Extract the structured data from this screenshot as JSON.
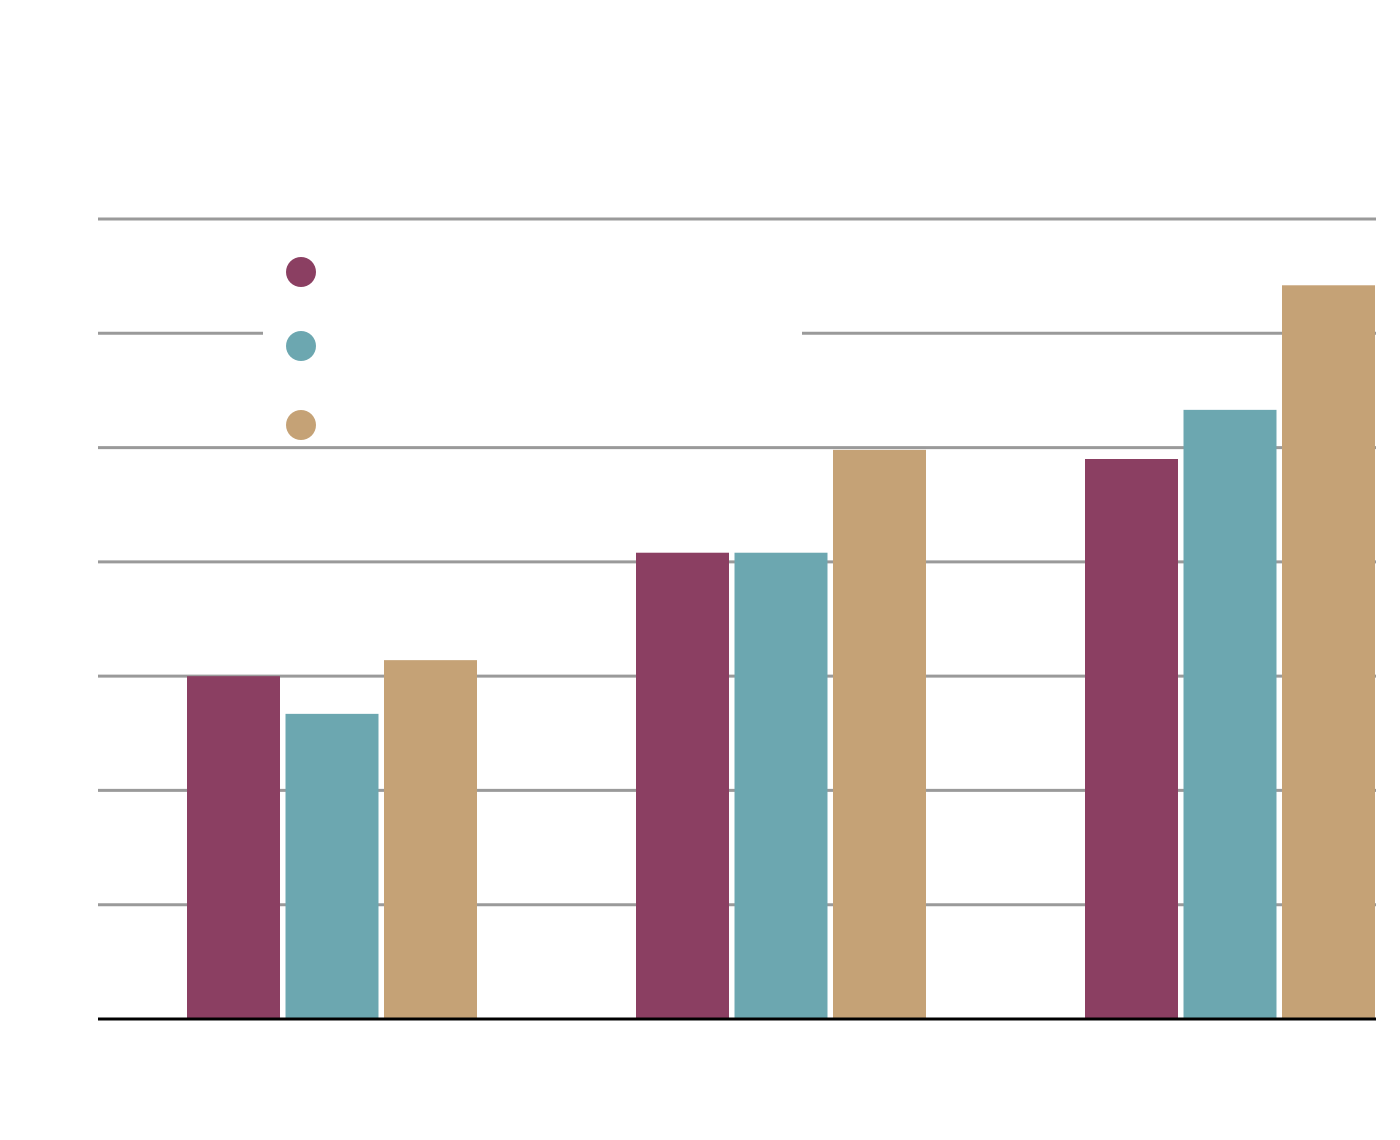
{
  "chart_data": {
    "type": "bar",
    "categories": [
      null,
      null,
      null
    ],
    "series": [
      {
        "color": "#8b3f62",
        "values": [
          3.0,
          4.08,
          4.9
        ]
      },
      {
        "color": "#6ca7b0",
        "values": [
          2.67,
          4.08,
          5.33
        ]
      },
      {
        "color": "#c5a276",
        "values": [
          3.14,
          4.98,
          6.42
        ]
      }
    ],
    "ylim": [
      0,
      7
    ],
    "yticks": [
      0,
      1,
      2,
      3,
      4,
      5,
      6,
      7
    ],
    "grid": true
  }
}
